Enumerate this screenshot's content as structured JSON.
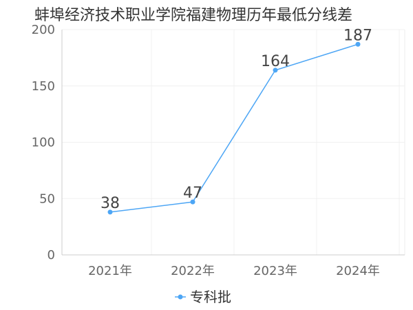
{
  "chart_data": {
    "type": "line",
    "title": "蚌埠经济技术职业学院福建物理历年最低分线差",
    "categories": [
      "2021年",
      "2022年",
      "2023年",
      "2024年"
    ],
    "series": [
      {
        "name": "专科批",
        "values": [
          38,
          47,
          164,
          187
        ],
        "color": "#4da6f5"
      }
    ],
    "ylim": [
      0,
      200
    ],
    "yticks": [
      0,
      50,
      100,
      150,
      200
    ],
    "grid": true,
    "legend_position": "bottom-center",
    "xlabel": "",
    "ylabel": ""
  }
}
